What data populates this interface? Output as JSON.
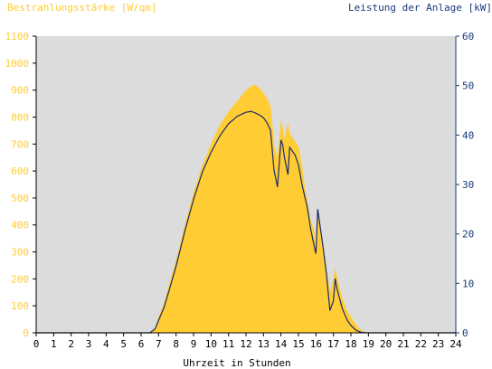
{
  "chart_data": {
    "type": "area",
    "left_axis_title": "Bestrahlungsstärke [W/qm]",
    "right_axis_title": "Leistung der Anlage [kW]",
    "xlabel": "Uhrzeit in Stunden",
    "x_ticks": [
      "0",
      "1",
      "2",
      "3",
      "4",
      "5",
      "6",
      "7",
      "8",
      "9",
      "10",
      "11",
      "12",
      "13",
      "14",
      "15",
      "16",
      "17",
      "18",
      "19",
      "20",
      "21",
      "22",
      "23",
      "24"
    ],
    "left_ticks": [
      "0",
      "100",
      "200",
      "300",
      "400",
      "500",
      "600",
      "700",
      "800",
      "900",
      "1000",
      "1100"
    ],
    "right_ticks": [
      "0",
      "10",
      "20",
      "30",
      "40",
      "50",
      "60"
    ],
    "xlim": [
      0,
      24
    ],
    "ylim_left": [
      0,
      1100
    ],
    "ylim_right": [
      0,
      60
    ],
    "grid": false,
    "colors": {
      "irradiance": "#ffcc33",
      "power": "#1a2a6c",
      "plot_bg": "#dcdcdc",
      "left_text": "#ffcc33",
      "right_text": "#1a3a7a",
      "axis": "#000000"
    },
    "series": [
      {
        "key": "irradiance",
        "axis": "left",
        "x": [
          6.5,
          6.8,
          7.0,
          7.3,
          7.6,
          8.0,
          8.5,
          9.0,
          9.5,
          10.0,
          10.5,
          11.0,
          11.5,
          12.0,
          12.3,
          12.5,
          12.8,
          13.0,
          13.2,
          13.4,
          13.5,
          13.6,
          13.8,
          14.0,
          14.1,
          14.2,
          14.4,
          14.5,
          14.6,
          14.8,
          15.0,
          15.2,
          15.4,
          15.5,
          15.7,
          15.9,
          16.0,
          16.1,
          16.2,
          16.4,
          16.6,
          16.8,
          17.0,
          17.1,
          17.2,
          17.5,
          17.8,
          18.0,
          18.3,
          18.6,
          18.9
        ],
        "y": [
          0,
          20,
          60,
          110,
          180,
          270,
          400,
          520,
          620,
          700,
          770,
          820,
          860,
          900,
          915,
          920,
          905,
          890,
          870,
          840,
          780,
          700,
          650,
          790,
          760,
          720,
          780,
          740,
          730,
          710,
          690,
          620,
          530,
          490,
          420,
          380,
          300,
          440,
          410,
          330,
          240,
          150,
          200,
          240,
          210,
          130,
          80,
          60,
          30,
          10,
          0
        ]
      },
      {
        "key": "power",
        "axis": "right",
        "x": [
          6.5,
          6.8,
          7.0,
          7.3,
          7.6,
          8.0,
          8.5,
          9.0,
          9.5,
          10.0,
          10.5,
          11.0,
          11.5,
          12.0,
          12.3,
          12.5,
          12.8,
          13.0,
          13.2,
          13.4,
          13.5,
          13.6,
          13.8,
          14.0,
          14.1,
          14.2,
          14.4,
          14.5,
          14.6,
          14.8,
          15.0,
          15.2,
          15.4,
          15.5,
          15.7,
          15.9,
          16.0,
          16.1,
          16.2,
          16.4,
          16.6,
          16.8,
          17.0,
          17.1,
          17.2,
          17.5,
          17.8,
          18.0,
          18.3,
          18.6,
          18.9
        ],
        "y": [
          0,
          0.8,
          2.5,
          5.0,
          8.5,
          13.5,
          20.5,
          27.0,
          32.5,
          36.5,
          39.8,
          42.3,
          43.8,
          44.6,
          44.8,
          44.5,
          44.0,
          43.5,
          42.5,
          41.0,
          37.0,
          33.0,
          29.5,
          39.0,
          38.0,
          35.5,
          32.0,
          37.5,
          37.0,
          36.0,
          34.0,
          30.0,
          27.0,
          25.5,
          21.0,
          17.5,
          16.0,
          25.0,
          22.5,
          17.5,
          12.0,
          4.5,
          6.5,
          11.0,
          9.0,
          5.0,
          2.5,
          1.5,
          0.5,
          0.1,
          0
        ]
      }
    ]
  }
}
